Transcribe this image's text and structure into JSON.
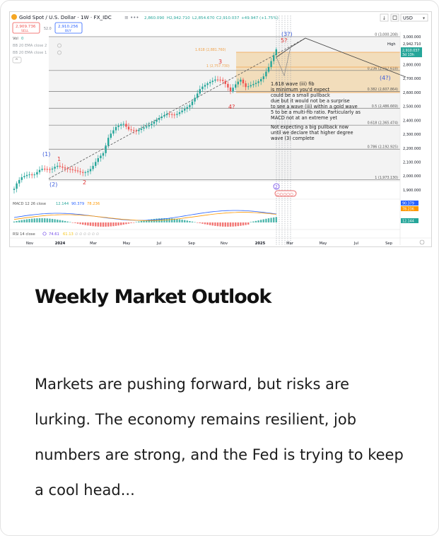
{
  "chart": {
    "symbol": "Gold Spot / U.S. Dollar · 1W · FX_IDC",
    "ohlc": {
      "o": "2,860.090",
      "h": "H2,942.710",
      "l": "L2,854.670",
      "c": "C2,910.037",
      "chg": "+49.947 (+1.75%)"
    },
    "sell": {
      "price": "2,909.736",
      "label": "SELL"
    },
    "spread": "52.0",
    "buy": {
      "price": "2,910.256",
      "label": "BUY"
    },
    "currency": "USD",
    "legend": {
      "vol": "Vol",
      "vol_val": "0",
      "bb1": "BB 20 EMA close 2",
      "bb2": "BB 20 EMA close 1"
    },
    "price_scale": [
      "3,000.000",
      "2,900.000",
      "2,800.000",
      "2,700.000",
      "2,600.000",
      "2,500.000",
      "2,400.000",
      "2,300.000",
      "2,200.000",
      "2,100.000",
      "2,000.000",
      "1,900.000"
    ],
    "high_label": "High",
    "high_value": "2,942.710",
    "current_price": "2,910.037",
    "countdown": "3d 13h",
    "fib_levels": [
      {
        "label": "0 (3,000.208)",
        "price": 3000.208
      },
      {
        "label": "0.236 (2,757.618)",
        "price": 2757.618
      },
      {
        "label": "0.382 (2,607.864)",
        "price": 2607.864
      },
      {
        "label": "0.5 (2,486.669)",
        "price": 2486.669
      },
      {
        "label": "0.618 (2,365.474)",
        "price": 2365.474
      },
      {
        "label": "0.786 (2,192.925)",
        "price": 2192.925
      },
      {
        "label": "1 (1,973.130)",
        "price": 1973.13
      }
    ],
    "ext_label_1": "1.618 (2,881.760)",
    "ext_label_2": "1 (2,757.730)",
    "waves": {
      "w1": "(1)",
      "w1r": "1",
      "w2": "(2)",
      "w2r": "2",
      "w3": "3",
      "w4": "4?",
      "w5": "5?",
      "w3b": "(3?)",
      "w4b": "(4?)"
    },
    "annotation_1": [
      "1.618 wave (iii) fib",
      "is minimum you'd expect",
      "could be a small pullback",
      "due but it would not be a surprise",
      "to see a wave (iii) within a gold wave",
      "5 to be a multi-fib ratio. Particularly as",
      "MACD not at an extreme yet"
    ],
    "annotation_2": [
      "Not expecting a big pullback now",
      "until we declare that higher degree",
      "wave (3) complete"
    ],
    "macd": {
      "label": "MACD 12 26 close",
      "v1": "12.144",
      "v2": "90.379",
      "v3": "78.236",
      "scale_1": "90.379",
      "scale_2": "78.236",
      "scale_3": "12.144"
    },
    "rsi": {
      "label": "RSI 14 close",
      "v1": "74.61",
      "v2": "61.13"
    },
    "time_axis": [
      "Nov",
      "2024",
      "Mar",
      "May",
      "Jul",
      "Sep",
      "Nov",
      "2025",
      "Mar",
      "May",
      "Jul",
      "Sep"
    ]
  },
  "article": {
    "headline": "Weekly Market Outlook",
    "excerpt": "Markets are pushing forward, but risks are lurking. The economy remains resilient, job numbers are strong, and the Fed is trying to keep a cool head..."
  },
  "colors": {
    "up": "#26a69a",
    "down": "#ef5350",
    "fib_band": "#f2d6a8",
    "wave_blue": "#3b5bdb",
    "wave_red": "#e03131"
  }
}
